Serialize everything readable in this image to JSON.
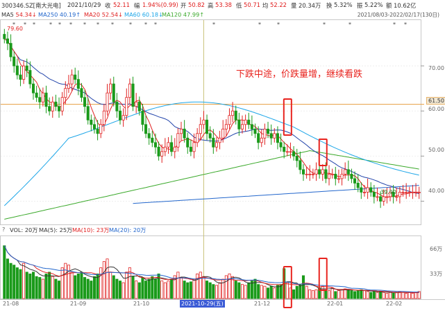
{
  "header": {
    "symbol": "300346.SZ[南大光电]",
    "date": "2021/10/29",
    "close_label": "收",
    "close": "52.11",
    "change_label": "幅",
    "change": "1.94%(0.99)",
    "open_label": "开",
    "open": "50.82",
    "high_label": "高",
    "high": "53.38",
    "low_label": "低",
    "low": "50.71",
    "last_label": "均",
    "last": "52.22",
    "volume_label": "量",
    "volume": "20.34万",
    "turnover_label": "换",
    "turnover": "5.32%",
    "amplitude_label": "振",
    "amplitude": "5.22%",
    "amount_label": "额",
    "amount": "10.62亿",
    "range": "2021/08/03-2022/02/17(130日)"
  },
  "ma_legend": [
    {
      "label": "MA5",
      "value": "54.34↓",
      "color": "#333333"
    },
    {
      "label": "MA250",
      "value": "40.19↑",
      "color": "#2266cc"
    },
    {
      "label": "MA20",
      "value": "52.54↓",
      "color": "#e02020"
    },
    {
      "label": "MA60",
      "value": "60.18↓",
      "color": "#1da6e8"
    },
    {
      "label": "MA120",
      "value": "47.99↑",
      "color": "#3aa92a"
    }
  ],
  "annotation": "下跌中途，价跌量增，继续看跌",
  "price_axis": {
    "ticks": [
      "70.00",
      "60.00",
      "50.00",
      "40.00"
    ],
    "marker": "61.50",
    "max_label": "79.60",
    "min_label": "39.90"
  },
  "volume_legend": {
    "prefix": "?",
    "vol": "VOL: 20万",
    "ma5": "MA(5): 25万",
    "ma10": "MA(10): 23万",
    "ma20": "MA(20): 20万",
    "colors": {
      "ma5": "#333333",
      "ma10": "#e02020",
      "ma20": "#2266cc"
    }
  },
  "volume_axis": {
    "ticks": [
      "66万",
      "33万"
    ]
  },
  "x_axis": {
    "labels": [
      "21-08",
      "21-09",
      "21-10",
      "21-12",
      "22-01",
      "22-02"
    ],
    "cursor_date": "2021-10-29(五)"
  },
  "colors": {
    "up": "#e02020",
    "down": "#1a9a1a",
    "annotation": "#e8231e"
  },
  "chart_data": {
    "type": "candlestick",
    "x_start": "2021-08-03",
    "x_end": "2022-02-17",
    "n_days": 130,
    "ylim": [
      35,
      80
    ],
    "visible_ticks": [
      40,
      50,
      60,
      70
    ],
    "reference_line": 61.5,
    "close": [
      76,
      75,
      72,
      70,
      68,
      67,
      70,
      69,
      66,
      64,
      63,
      62,
      64,
      61,
      60,
      62,
      61,
      60,
      63,
      65,
      66,
      68,
      67,
      65,
      63,
      61,
      58,
      57,
      56,
      55,
      57,
      60,
      64,
      66,
      62,
      60,
      58,
      59,
      63,
      66,
      61,
      62,
      60,
      57,
      55,
      54,
      53,
      52,
      50,
      51,
      52,
      53,
      51,
      52,
      55,
      56,
      54,
      52,
      51,
      53,
      55,
      57,
      58,
      55,
      54,
      52,
      53,
      54,
      56,
      57,
      59,
      60,
      58,
      56,
      57,
      58,
      57,
      56,
      55,
      53,
      54,
      56,
      55,
      54,
      55,
      53,
      52,
      51,
      51,
      51,
      50,
      49,
      47,
      46,
      46,
      46,
      46,
      47,
      46,
      47,
      45,
      46,
      46,
      45,
      45,
      46,
      47,
      46,
      45,
      44,
      43,
      42,
      42,
      43,
      42,
      41,
      41,
      40,
      41,
      41,
      42,
      41,
      41,
      42,
      42,
      42,
      42,
      42,
      42,
      42
    ],
    "volume_wan": [
      60,
      45,
      40,
      38,
      35,
      33,
      40,
      30,
      28,
      30,
      25,
      24,
      22,
      28,
      30,
      25,
      22,
      20,
      35,
      40,
      38,
      30,
      26,
      28,
      30,
      24,
      22,
      20,
      25,
      28,
      35,
      42,
      45,
      30,
      26,
      22,
      20,
      18,
      30,
      35,
      25,
      20,
      18,
      24,
      20,
      22,
      25,
      22,
      28,
      20,
      18,
      20,
      22,
      26,
      30,
      24,
      20,
      18,
      19,
      22,
      28,
      30,
      25,
      20,
      18,
      16,
      15,
      18,
      22,
      26,
      28,
      25,
      20,
      18,
      16,
      15,
      18,
      20,
      22,
      16,
      15,
      14,
      12,
      14,
      12,
      15,
      16,
      34,
      18,
      12,
      10,
      14,
      16,
      26,
      14,
      10,
      9,
      10,
      12,
      14,
      10,
      9,
      12,
      8,
      9,
      10,
      11,
      10,
      9,
      8,
      9,
      10,
      9,
      8,
      7,
      8,
      7,
      8,
      7,
      6,
      7,
      6,
      7,
      8,
      7,
      6,
      7,
      6,
      7,
      8
    ],
    "ma250": [
      40.19,
      41.0,
      42.5
    ],
    "ma_labels": [
      "MA5",
      "MA20",
      "MA60",
      "MA120",
      "MA250"
    ]
  }
}
